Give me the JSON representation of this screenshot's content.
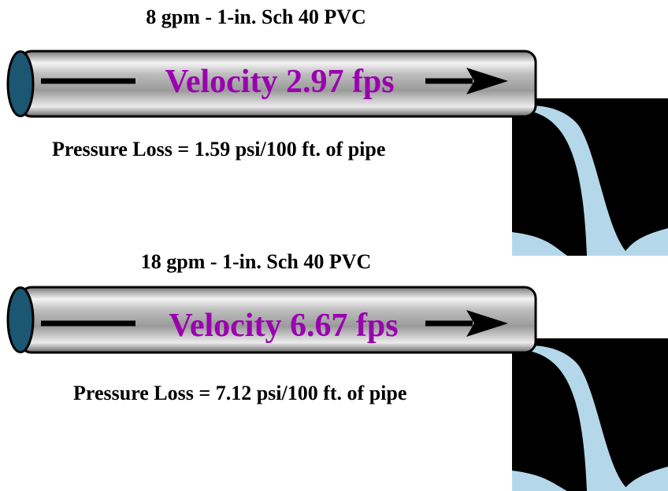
{
  "panels": [
    {
      "title": "8 gpm - 1-in. Sch 40 PVC",
      "velocity": "Velocity 2.97 fps",
      "pressure_loss": "Pressure Loss = 1.59 psi/100 ft. of pipe"
    },
    {
      "title": "18 gpm - 1-in. Sch 40 PVC",
      "velocity": "Velocity 6.67 fps",
      "pressure_loss": "Pressure Loss = 7.12 psi/100 ft. of pipe"
    }
  ]
}
